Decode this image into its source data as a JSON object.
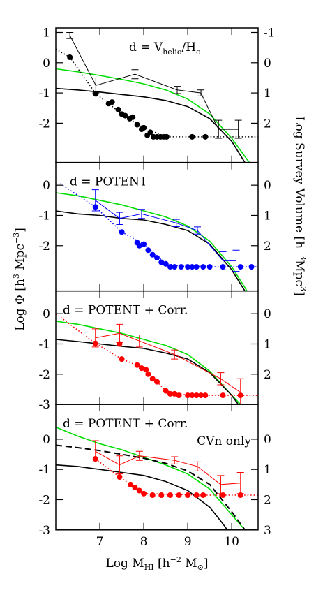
{
  "chart_data": [
    {
      "type": "line",
      "annotation": [
        "d = V",
        "helio",
        "/H",
        "o"
      ],
      "xlim": [
        6.0,
        10.6
      ],
      "ylim": [
        -3.3,
        1.15
      ],
      "yticks": [
        -2,
        -1,
        0,
        1
      ],
      "y2lim": [
        3.3,
        -1.15
      ],
      "y2ticks": [
        -1,
        0,
        1,
        2
      ],
      "series": [
        {
          "style": "curve",
          "color": "#00dd00",
          "x": [
            6.0,
            6.5,
            7.0,
            7.5,
            8.0,
            8.5,
            9.0,
            9.5,
            10.0,
            10.4
          ],
          "y": [
            -0.2,
            -0.3,
            -0.42,
            -0.55,
            -0.7,
            -0.9,
            -1.2,
            -1.7,
            -2.5,
            -3.3
          ]
        },
        {
          "style": "curve",
          "color": "#000000",
          "x": [
            6.0,
            6.5,
            7.0,
            7.5,
            8.0,
            8.5,
            9.0,
            9.5,
            10.0,
            10.3
          ],
          "y": [
            -0.85,
            -0.9,
            -0.97,
            -1.05,
            -1.13,
            -1.25,
            -1.45,
            -1.85,
            -2.6,
            -3.3
          ]
        },
        {
          "style": "dotted",
          "color": "#000000",
          "x": [
            6.0,
            6.32,
            6.91,
            7.2,
            7.5,
            8.0,
            8.5,
            9.1,
            9.4,
            10.6
          ],
          "y": [
            0.45,
            0.18,
            -1.03,
            -1.35,
            -1.7,
            -2.15,
            -2.45,
            -2.45,
            -2.45,
            -2.45
          ]
        },
        {
          "style": "errorbar",
          "color": "#000000",
          "x": [
            6.32,
            6.91,
            7.8,
            8.76,
            9.3,
            9.7,
            10.15
          ],
          "y": [
            0.9,
            -0.75,
            -0.38,
            -0.9,
            -1.0,
            -2.2,
            -2.2
          ],
          "err": [
            0.1,
            0.25,
            0.15,
            0.12,
            0.1,
            0.3,
            0.3
          ]
        },
        {
          "style": "points",
          "color": "#000000",
          "x": [
            6.32,
            6.91,
            7.2,
            7.28,
            7.42,
            7.5,
            7.58,
            7.68,
            7.75,
            7.85,
            7.95,
            8.0,
            8.08,
            8.15,
            8.22,
            8.3,
            8.38,
            8.45,
            8.52,
            9.1,
            9.4
          ],
          "y": [
            0.18,
            -1.03,
            -1.35,
            -1.3,
            -1.55,
            -1.7,
            -1.75,
            -1.85,
            -1.8,
            -2.05,
            -2.2,
            -2.15,
            -2.4,
            -2.3,
            -2.45,
            -2.45,
            -2.45,
            -2.45,
            -2.45,
            -2.45,
            -2.45
          ]
        }
      ]
    },
    {
      "type": "line",
      "annotation": [
        "d = POTENT"
      ],
      "xlim": [
        6.0,
        10.6
      ],
      "ylim": [
        -3.5,
        0.75
      ],
      "yticks": [
        -2,
        -1,
        0
      ],
      "y2lim": [
        3.5,
        -0.75
      ],
      "y2ticks": [
        0,
        1,
        2
      ],
      "series": [
        {
          "style": "curve",
          "color": "#00dd00",
          "x": [
            6.0,
            6.5,
            7.0,
            7.5,
            8.0,
            8.5,
            9.0,
            9.5,
            10.0,
            10.35
          ],
          "y": [
            -0.25,
            -0.35,
            -0.5,
            -0.65,
            -0.85,
            -1.05,
            -1.35,
            -1.85,
            -2.7,
            -3.5
          ]
        },
        {
          "style": "curve",
          "color": "#000000",
          "x": [
            6.0,
            6.5,
            7.0,
            7.5,
            8.0,
            8.5,
            9.0,
            9.5,
            10.0,
            10.3
          ],
          "y": [
            -0.85,
            -0.95,
            -1.0,
            -1.1,
            -1.15,
            -1.3,
            -1.5,
            -1.95,
            -2.8,
            -3.5
          ]
        },
        {
          "style": "dotted",
          "color": "#0000ff",
          "x": [
            6.1,
            6.9,
            7.5,
            8.0,
            8.5,
            9.0,
            10.6
          ],
          "y": [
            0.05,
            -0.72,
            -1.55,
            -1.95,
            -2.6,
            -2.7,
            -2.7
          ]
        },
        {
          "style": "errorbar",
          "color": "#0000ff",
          "x": [
            6.9,
            7.45,
            7.95,
            8.74,
            9.22,
            9.8,
            10.1
          ],
          "y": [
            -0.5,
            -1.1,
            -0.95,
            -1.25,
            -1.5,
            -2.5,
            -2.5
          ],
          "err": [
            0.35,
            0.2,
            0.15,
            0.12,
            0.12,
            0.3,
            0.35
          ]
        },
        {
          "style": "points",
          "color": "#0000ff",
          "x": [
            6.9,
            7.5,
            7.85,
            7.9,
            8.0,
            8.1,
            8.2,
            8.3,
            8.4,
            8.5,
            8.6,
            8.7,
            8.85,
            9.0,
            9.1,
            9.2,
            9.35,
            9.5,
            9.8,
            10.2,
            10.45
          ],
          "y": [
            -0.72,
            -1.55,
            -1.9,
            -2.0,
            -1.95,
            -2.15,
            -2.3,
            -2.4,
            -2.55,
            -2.6,
            -2.7,
            -2.7,
            -2.7,
            -2.7,
            -2.7,
            -2.7,
            -2.7,
            -2.7,
            -2.7,
            -2.7,
            -2.7
          ]
        }
      ]
    },
    {
      "type": "line",
      "annotation": [
        "d = POTENT + Corr."
      ],
      "xlim": [
        6.0,
        10.6
      ],
      "ylim": [
        -3,
        0.75
      ],
      "yticks": [
        -3,
        -2,
        -1,
        0
      ],
      "y2lim": [
        3,
        -0.75
      ],
      "y2ticks": [
        0,
        1,
        2
      ],
      "series": [
        {
          "style": "curve",
          "color": "#00dd00",
          "x": [
            6.0,
            6.5,
            7.0,
            7.5,
            8.0,
            8.5,
            9.0,
            9.5,
            10.0,
            10.2
          ],
          "y": [
            -0.25,
            -0.35,
            -0.5,
            -0.65,
            -0.85,
            -1.05,
            -1.35,
            -1.9,
            -2.7,
            -3.0
          ]
        },
        {
          "style": "curve",
          "color": "#000000",
          "x": [
            6.0,
            6.5,
            7.0,
            7.5,
            8.0,
            8.5,
            9.0,
            9.5,
            10.0,
            10.15
          ],
          "y": [
            -0.85,
            -0.92,
            -1.0,
            -1.08,
            -1.15,
            -1.3,
            -1.5,
            -1.95,
            -2.7,
            -3.0
          ]
        },
        {
          "style": "dotted",
          "color": "#ff0000",
          "x": [
            6.0,
            6.9,
            7.5,
            8.0,
            8.5,
            9.0,
            10.6
          ],
          "y": [
            0.0,
            -0.98,
            -1.5,
            -1.8,
            -2.55,
            -2.7,
            -2.7
          ]
        },
        {
          "style": "errorbar",
          "color": "#ff0000",
          "x": [
            6.9,
            7.45,
            7.9,
            8.7,
            9.75,
            10.2
          ],
          "y": [
            -0.8,
            -0.65,
            -0.9,
            -1.35,
            -2.15,
            -2.6
          ],
          "err": [
            0.3,
            0.3,
            0.2,
            0.15,
            0.2,
            0.45
          ]
        },
        {
          "style": "points",
          "color": "#ff0000",
          "x": [
            6.9,
            7.45,
            7.5,
            7.85,
            7.95,
            8.05,
            8.1,
            8.2,
            8.3,
            8.5,
            8.6,
            8.7,
            8.8,
            9.0,
            9.1,
            9.2,
            9.3,
            9.4,
            9.8,
            10.2
          ],
          "y": [
            -0.98,
            -1.0,
            -1.5,
            -1.7,
            -1.8,
            -1.85,
            -2.0,
            -2.15,
            -2.25,
            -2.55,
            -2.65,
            -2.65,
            -2.7,
            -2.7,
            -2.7,
            -2.7,
            -2.7,
            -2.7,
            -2.7,
            -2.7
          ]
        }
      ]
    },
    {
      "type": "line",
      "annotation": [
        "d = POTENT + Corr."
      ],
      "annotation2": "CVn only",
      "xlim": [
        6.0,
        10.6
      ],
      "ylim": [
        -3,
        1.15
      ],
      "yticks": [
        -3,
        -2,
        -1,
        0
      ],
      "y2lim": [
        3,
        -1.15
      ],
      "y2ticks": [
        0,
        1,
        2,
        3
      ],
      "xticks": [
        7,
        8,
        9,
        10
      ],
      "series": [
        {
          "style": "curve",
          "color": "#00dd00",
          "x": [
            6.0,
            6.5,
            7.0,
            7.5,
            8.0,
            8.5,
            9.0,
            9.5,
            10.0,
            10.3
          ],
          "y": [
            0.4,
            0.1,
            -0.15,
            -0.35,
            -0.6,
            -0.85,
            -1.15,
            -1.65,
            -2.5,
            -3.0
          ]
        },
        {
          "style": "dashed",
          "color": "#000000",
          "x": [
            6.0,
            6.5,
            7.0,
            7.5,
            8.0,
            8.5,
            9.0,
            9.5,
            10.0,
            10.3
          ],
          "y": [
            -0.2,
            -0.28,
            -0.38,
            -0.5,
            -0.63,
            -0.8,
            -1.05,
            -1.5,
            -2.4,
            -3.0
          ]
        },
        {
          "style": "curve",
          "color": "#000000",
          "x": [
            6.0,
            6.5,
            7.0,
            7.5,
            8.0,
            8.5,
            9.0,
            9.5,
            9.8,
            9.9
          ],
          "y": [
            -0.85,
            -0.9,
            -1.0,
            -1.1,
            -1.2,
            -1.4,
            -1.7,
            -2.25,
            -2.8,
            -3.0
          ]
        },
        {
          "style": "dotted",
          "color": "#ff0000",
          "x": [
            6.9,
            7.45,
            8.0,
            9.35,
            10.0,
            10.6
          ],
          "y": [
            -0.65,
            -1.25,
            -1.8,
            -1.85,
            -1.85,
            -1.85
          ]
        },
        {
          "style": "errorbar",
          "color": "#ff0000",
          "x": [
            6.9,
            7.45,
            7.9,
            8.7,
            9.22,
            9.75,
            10.2
          ],
          "y": [
            -0.4,
            -0.85,
            -0.55,
            -0.7,
            -0.9,
            -1.5,
            -1.45
          ],
          "err": [
            0.35,
            0.3,
            0.15,
            0.12,
            0.15,
            0.3,
            0.35
          ]
        },
        {
          "style": "points",
          "color": "#ff0000",
          "x": [
            6.9,
            7.45,
            7.7,
            7.8,
            7.9,
            8.0,
            8.2,
            8.4,
            8.6,
            8.8,
            9.0,
            9.2,
            9.35,
            9.8,
            10.2
          ],
          "y": [
            -0.65,
            -1.25,
            -1.5,
            -1.6,
            -1.7,
            -1.8,
            -1.85,
            -1.85,
            -1.85,
            -1.85,
            -1.85,
            -1.85,
            -1.85,
            -1.85,
            -1.85
          ]
        }
      ]
    }
  ],
  "ylabel": [
    "Log Φ [h",
    "3",
    " Mpc",
    "−3",
    "]"
  ],
  "y2label": [
    "Log Survey Volume [h",
    "−3",
    "Mpc",
    "3",
    "]"
  ],
  "xlabel": [
    "Log M",
    "HI",
    " [h",
    "−2",
    " M",
    "⊙",
    "]"
  ]
}
